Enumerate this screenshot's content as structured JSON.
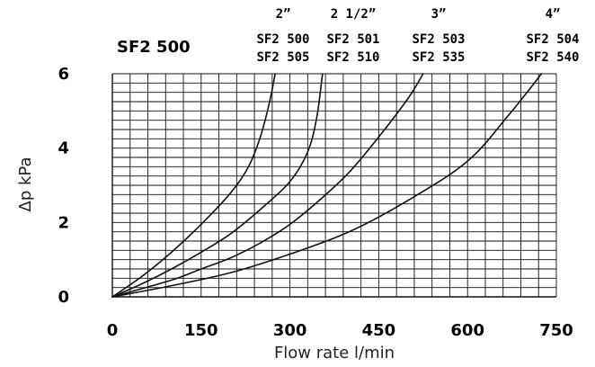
{
  "chart_data": {
    "type": "line",
    "title": "SF2 500",
    "xlabel": "Flow rate l/min",
    "ylabel": "Δp kPa",
    "xlim": [
      0,
      750
    ],
    "ylim": [
      0,
      6
    ],
    "x_ticks": [
      0,
      150,
      300,
      450,
      600,
      750
    ],
    "x_tick_labels": [
      "0",
      "150",
      "300",
      "450",
      "600",
      "750"
    ],
    "y_ticks": [
      0,
      2,
      4,
      6
    ],
    "y_tick_labels": [
      "0",
      "2",
      "4",
      "6"
    ],
    "grid": true,
    "series": [
      {
        "size_label": "2”",
        "models": [
          "SF2 500",
          "SF2 505"
        ],
        "points": [
          [
            0,
            0
          ],
          [
            50,
            0.55
          ],
          [
            100,
            1.2
          ],
          [
            150,
            1.95
          ],
          [
            200,
            2.8
          ],
          [
            230,
            3.5
          ],
          [
            250,
            4.3
          ],
          [
            265,
            5.2
          ],
          [
            275,
            6.0
          ]
        ]
      },
      {
        "size_label": "2 1/2”",
        "models": [
          "SF2 501",
          "SF2 510"
        ],
        "points": [
          [
            0,
            0
          ],
          [
            50,
            0.35
          ],
          [
            100,
            0.75
          ],
          [
            150,
            1.2
          ],
          [
            200,
            1.7
          ],
          [
            250,
            2.35
          ],
          [
            300,
            3.1
          ],
          [
            330,
            3.9
          ],
          [
            345,
            4.8
          ],
          [
            355,
            6.0
          ]
        ]
      },
      {
        "size_label": "3”",
        "models": [
          "SF2 503",
          "SF2 535"
        ],
        "points": [
          [
            0,
            0
          ],
          [
            100,
            0.45
          ],
          [
            150,
            0.75
          ],
          [
            200,
            1.05
          ],
          [
            250,
            1.45
          ],
          [
            300,
            1.95
          ],
          [
            350,
            2.6
          ],
          [
            400,
            3.35
          ],
          [
            450,
            4.3
          ],
          [
            500,
            5.35
          ],
          [
            525,
            6.0
          ]
        ]
      },
      {
        "size_label": "4”",
        "models": [
          "SF2 504",
          "SF2 540"
        ],
        "points": [
          [
            0,
            0
          ],
          [
            100,
            0.3
          ],
          [
            200,
            0.65
          ],
          [
            300,
            1.15
          ],
          [
            400,
            1.75
          ],
          [
            500,
            2.6
          ],
          [
            600,
            3.65
          ],
          [
            670,
            4.9
          ],
          [
            725,
            6.0
          ]
        ]
      }
    ]
  }
}
